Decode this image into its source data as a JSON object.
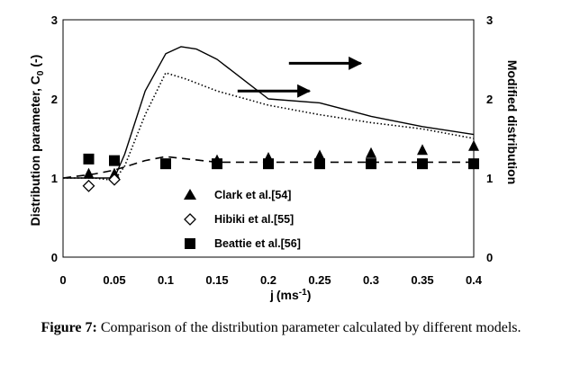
{
  "caption": {
    "label": "Figure 7:",
    "text": "Comparison of the distribution parameter calculated by different models."
  },
  "chart_data": {
    "type": "line",
    "xlabel": "j (ms⁻¹)",
    "xlabel_base": "j",
    "xlabel_unit": "(ms",
    "xlabel_exp": "-1",
    "xlabel_close": ")",
    "ylabel": "Distribution parameter, C₀ (-)",
    "ylabel_main": "Distribution parameter, C",
    "ylabel_sub": "0",
    "ylabel_tail": " (-)",
    "ylabel_right": "Modified distribution",
    "xlim": [
      0,
      0.4
    ],
    "ylim": [
      0,
      3
    ],
    "ylim_right": [
      0,
      3
    ],
    "x_ticks": [
      "0",
      "0.05",
      "0.1",
      "0.15",
      "0.2",
      "0.25",
      "0.3",
      "0.35",
      "0.4"
    ],
    "y_ticks": [
      "0",
      "1",
      "2",
      "3"
    ],
    "y_ticks_right": [
      "0",
      "1",
      "2",
      "3"
    ],
    "grid": false,
    "legend_position": "bottom-center",
    "series": [
      {
        "name": "Clark et al.[54]",
        "marker": "triangle",
        "x": [
          0.025,
          0.05,
          0.1,
          0.15,
          0.2,
          0.25,
          0.3,
          0.35,
          0.4
        ],
        "y": [
          1.05,
          1.05,
          1.17,
          1.22,
          1.25,
          1.28,
          1.31,
          1.35,
          1.4
        ]
      },
      {
        "name": "Hibiki et al.[55]",
        "marker": "diamond",
        "x": [
          0.025,
          0.05
        ],
        "y": [
          0.9,
          0.98
        ]
      },
      {
        "name": "Beattie et al.[56]",
        "marker": "square",
        "x": [
          0.025,
          0.05,
          0.1,
          0.15,
          0.2,
          0.25,
          0.3,
          0.35,
          0.4
        ],
        "y": [
          1.24,
          1.22,
          1.18,
          1.18,
          1.18,
          1.18,
          1.18,
          1.18,
          1.18
        ]
      },
      {
        "style": "dashed",
        "x": [
          0,
          0.03,
          0.05,
          0.08,
          0.1,
          0.15,
          0.2,
          0.25,
          0.3,
          0.35,
          0.4
        ],
        "y": [
          1.0,
          1.05,
          1.1,
          1.22,
          1.27,
          1.2,
          1.2,
          1.2,
          1.2,
          1.2,
          1.2
        ]
      },
      {
        "style": "solid",
        "axis": "right",
        "x": [
          0,
          0.03,
          0.05,
          0.06,
          0.08,
          0.1,
          0.115,
          0.13,
          0.15,
          0.18,
          0.2,
          0.25,
          0.3,
          0.35,
          0.4
        ],
        "y": [
          1.0,
          1.0,
          1.0,
          1.3,
          2.1,
          2.57,
          2.66,
          2.63,
          2.5,
          2.2,
          2.0,
          1.95,
          1.78,
          1.65,
          1.55
        ]
      },
      {
        "style": "dotted",
        "axis": "right",
        "x": [
          0,
          0.03,
          0.05,
          0.06,
          0.08,
          0.1,
          0.12,
          0.15,
          0.2,
          0.25,
          0.3,
          0.35,
          0.4
        ],
        "y": [
          1.0,
          1.0,
          0.97,
          1.15,
          1.8,
          2.33,
          2.25,
          2.1,
          1.92,
          1.8,
          1.7,
          1.62,
          1.5
        ]
      }
    ],
    "annotations": [
      {
        "type": "arrow",
        "points_to": "right",
        "from": [
          0.22,
          2.45
        ],
        "to": [
          0.29,
          2.45
        ]
      },
      {
        "type": "arrow",
        "points_to": "right",
        "from": [
          0.17,
          2.1
        ],
        "to": [
          0.24,
          2.1
        ]
      }
    ]
  }
}
